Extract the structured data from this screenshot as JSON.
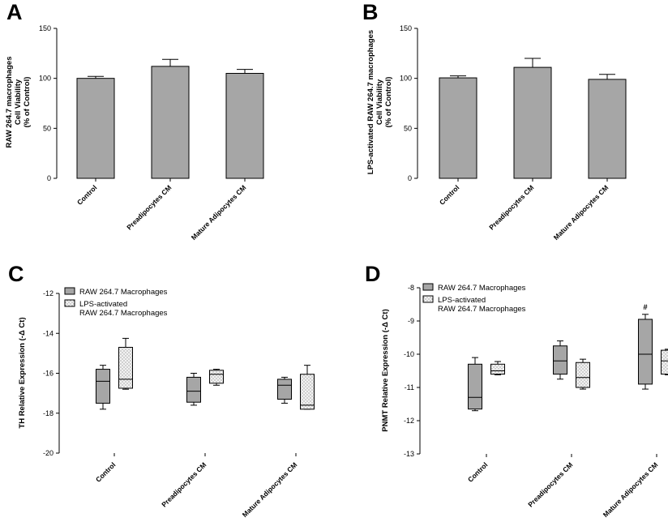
{
  "colors": {
    "bar": "#a6a6a6",
    "axis": "#000000",
    "box_dark": "#a6a6a6",
    "box_light": "#eeeeee"
  },
  "chart_data": [
    {
      "panel": "A",
      "type": "bar",
      "ylabel": [
        "RAW 264.7  macrophages",
        "Cell Viability",
        "(% of Control)"
      ],
      "categories": [
        "Control",
        "Preadipocytes CM",
        "Mature Adipocytes CM"
      ],
      "values": [
        100,
        112,
        105
      ],
      "errors": [
        2,
        7,
        4
      ],
      "ylim": [
        0,
        150
      ],
      "yticks": [
        0,
        50,
        100,
        150
      ]
    },
    {
      "panel": "B",
      "type": "bar",
      "ylabel": [
        "LPS-activated RAW 264.7 macrophages",
        "Cell Viability",
        "(% of Control)"
      ],
      "categories": [
        "Control",
        "Preadipocytes CM",
        "Mature Adipocytes CM"
      ],
      "values": [
        100.5,
        111,
        99
      ],
      "errors": [
        2,
        9,
        5
      ],
      "ylim": [
        0,
        150
      ],
      "yticks": [
        0,
        50,
        100,
        150
      ]
    },
    {
      "panel": "C",
      "type": "box",
      "ylabel": "TH Relative Expression (-Δ Ct)",
      "categories": [
        "Control",
        "Preadipocytes CM",
        "Mature Adipocytes CM"
      ],
      "ylim": [
        -20,
        -12
      ],
      "yticks": [
        -20,
        -18,
        -16,
        -14,
        -12
      ],
      "legend": [
        "RAW 264.7 Macrophages",
        "LPS-activated\nRAW 264.7 Macrophages"
      ],
      "annotations": [],
      "series": [
        {
          "name": "RAW 264.7 Macrophages",
          "boxes": [
            {
              "min": -17.8,
              "q1": -17.5,
              "median": -16.4,
              "q3": -15.8,
              "max": -15.6
            },
            {
              "min": -17.6,
              "q1": -17.45,
              "median": -16.9,
              "q3": -16.2,
              "max": -16.0
            },
            {
              "min": -17.5,
              "q1": -17.3,
              "median": -16.6,
              "q3": -16.3,
              "max": -16.2
            }
          ]
        },
        {
          "name": "LPS-activated RAW 264.7 Macrophages",
          "boxes": [
            {
              "min": -16.8,
              "q1": -16.75,
              "median": -16.3,
              "q3": -14.7,
              "max": -14.25
            },
            {
              "min": -16.6,
              "q1": -16.5,
              "median": -16.05,
              "q3": -15.85,
              "max": -15.8
            },
            {
              "min": -17.8,
              "q1": -17.8,
              "median": -17.6,
              "q3": -16.05,
              "max": -15.6
            }
          ]
        }
      ]
    },
    {
      "panel": "D",
      "type": "box",
      "ylabel": "PNMT Relative Expression (-Δ Ct)",
      "categories": [
        "Control",
        "Preadipocytes CM",
        "Mature Adipocytes CM"
      ],
      "ylim": [
        -13,
        -8
      ],
      "yticks": [
        -13,
        -12,
        -11,
        -10,
        -9,
        -8
      ],
      "legend": [
        "RAW 264.7 Macrophages",
        "LPS-activated\nRAW 264.7 Macrophages"
      ],
      "annotations": [
        {
          "text": "#",
          "category": 2,
          "series": 0
        }
      ],
      "series": [
        {
          "name": "RAW 264.7 Macrophages",
          "boxes": [
            {
              "min": -11.7,
              "q1": -11.65,
              "median": -11.3,
              "q3": -10.3,
              "max": -10.1
            },
            {
              "min": -10.75,
              "q1": -10.6,
              "median": -10.2,
              "q3": -9.75,
              "max": -9.6
            },
            {
              "min": -11.05,
              "q1": -10.9,
              "median": -10.0,
              "q3": -8.95,
              "max": -8.8
            }
          ]
        },
        {
          "name": "LPS-activated RAW 264.7 Macrophages",
          "boxes": [
            {
              "min": -10.62,
              "q1": -10.6,
              "median": -10.5,
              "q3": -10.3,
              "max": -10.22
            },
            {
              "min": -11.05,
              "q1": -11.0,
              "median": -10.7,
              "q3": -10.25,
              "max": -10.15
            },
            {
              "min": -10.62,
              "q1": -10.6,
              "median": -10.2,
              "q3": -9.88,
              "max": -9.85
            }
          ]
        }
      ]
    }
  ]
}
